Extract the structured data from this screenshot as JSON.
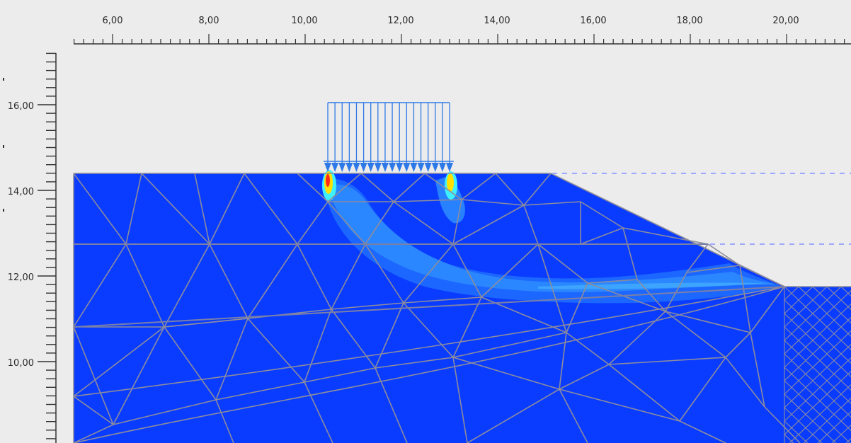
{
  "app": {
    "title": ""
  },
  "ruler_top": {
    "labels": [
      "6,00",
      "8,00",
      "10,00",
      "12,00",
      "14,00",
      "16,00",
      "18,00",
      "20,00"
    ]
  },
  "ruler_left": {
    "labels": [
      "16,00",
      "14,00",
      "12,00",
      "10,00"
    ]
  },
  "colors": {
    "background": "#ececec",
    "soil_fill": "#0a3cff",
    "mesh_lines": "#8c8c9c",
    "load_arrows": "#2e79e8",
    "shear_band_light": "#2e8dff",
    "shear_band_mid": "#1e6bff",
    "hotspot_red": "#ff2a1a",
    "hotspot_yellow": "#ffe000",
    "hotspot_cyan": "#3ff0ff",
    "phreatic_line": "#9fa8ff"
  },
  "legend": {
    "distributed_load": "uniform-load-arrows",
    "plot_quantity": "incremental-deviatoric-strain-shading"
  }
}
